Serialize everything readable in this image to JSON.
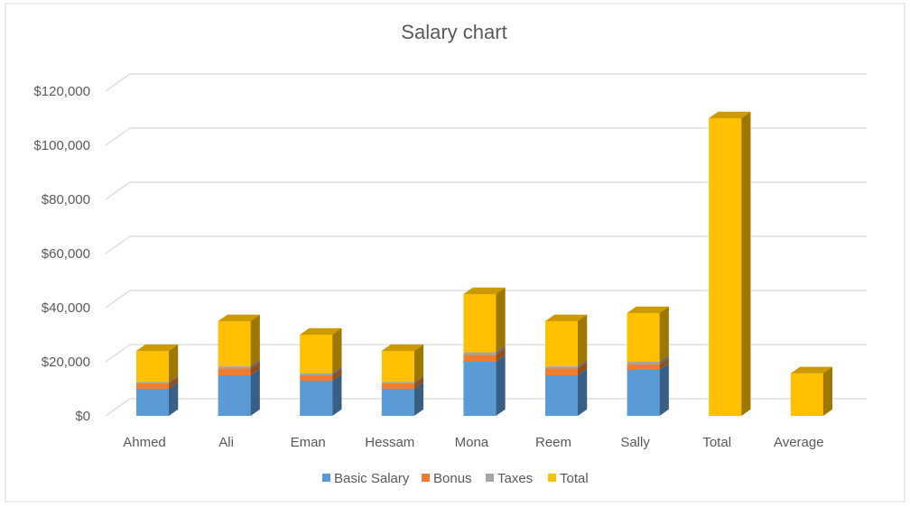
{
  "chart_data": {
    "type": "bar",
    "stacked": true,
    "style": "3d-column",
    "title": "Salary chart",
    "xlabel": "",
    "ylabel": "",
    "ylim": [
      0,
      120000
    ],
    "yticks": [
      "$0",
      "$20,000",
      "$40,000",
      "$60,000",
      "$80,000",
      "$100,000",
      "$120,000"
    ],
    "ytick_values": [
      0,
      20000,
      40000,
      60000,
      80000,
      100000,
      120000
    ],
    "categories": [
      "Ahmed",
      "Ali",
      "Eman",
      "Hessam",
      "Mona",
      "Reem",
      "Sally",
      "Total",
      "Average"
    ],
    "series": [
      {
        "name": "Basic Salary",
        "color": "#5B9BD5",
        "values": [
          10000,
          15000,
          13000,
          10000,
          20000,
          15000,
          17000,
          0,
          0
        ]
      },
      {
        "name": "Bonus",
        "color": "#ED7D31",
        "values": [
          2000,
          2500,
          2000,
          2000,
          2500,
          2500,
          2000,
          0,
          0
        ]
      },
      {
        "name": "Taxes",
        "color": "#A5A5A5",
        "values": [
          500,
          800,
          800,
          500,
          1000,
          800,
          1000,
          0,
          0
        ]
      },
      {
        "name": "Total",
        "color": "#FFC000",
        "values": [
          11500,
          16700,
          14200,
          11500,
          21500,
          16700,
          18000,
          110000,
          15700
        ]
      }
    ],
    "grid": true,
    "legend": "bottom"
  }
}
